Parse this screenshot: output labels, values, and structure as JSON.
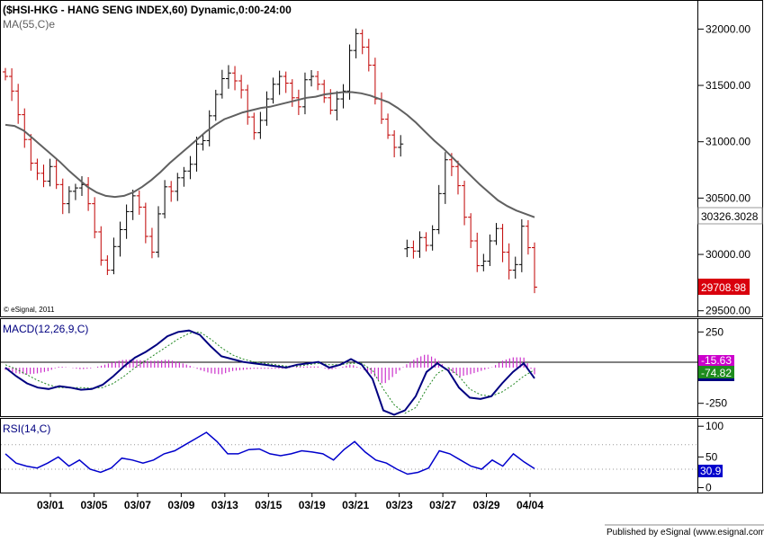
{
  "header": {
    "title": "($HSI-HKG - HANG SENG INDEX,60) Dynamic,0:00-24:00",
    "ma_label": "MA(55,C)e",
    "copyright": "© eSignal, 2011",
    "footer": "Published by eSignal (www.esignal.com)"
  },
  "colors": {
    "up": "#000000",
    "down": "#c00000",
    "ma": "#606060",
    "macd": "#000080",
    "signal": "#228822",
    "histogram": "#cc33cc",
    "rsi": "#0000cc"
  },
  "chart_data": [
    {
      "type": "ohlc",
      "title": "($HSI-HKG - HANG SENG INDEX,60) Dynamic,0:00-24:00",
      "ylim": [
        29450,
        32250
      ],
      "yticks": [
        29500,
        30000,
        30500,
        31000,
        31500,
        32000
      ],
      "ytick_labels": [
        "29500.00",
        "30000.00",
        "30500.00",
        "31000.00",
        "31500.00",
        "32000.00"
      ],
      "x_labels": [
        "03/01",
        "03/05",
        "03/07",
        "03/09",
        "03/13",
        "03/15",
        "03/19",
        "03/21",
        "03/23",
        "03/27",
        "03/29",
        "04/04"
      ],
      "close_series": [
        31580,
        31450,
        31240,
        31020,
        30810,
        30720,
        30650,
        30780,
        30620,
        30450,
        30560,
        30590,
        30620,
        30450,
        30200,
        29950,
        29860,
        30070,
        30220,
        30380,
        30520,
        30420,
        30160,
        30020,
        30360,
        30600,
        30560,
        30680,
        30740,
        30800,
        30980,
        31010,
        31230,
        31420,
        31560,
        31610,
        31540,
        31460,
        31220,
        31080,
        31190,
        31380,
        31510,
        31580,
        31520,
        31390,
        31310,
        31550,
        31580,
        31510,
        31390,
        31280,
        31380,
        31450,
        31810,
        31960,
        31840,
        31680,
        31380,
        31200,
        31060,
        30950,
        30980,
        30060,
        30030,
        30150,
        30080,
        30220,
        30540,
        30840,
        30780,
        30610,
        30330,
        30120,
        29900,
        29940,
        30120,
        30230,
        30020,
        29860,
        29910,
        30250,
        30060,
        29710
      ],
      "series": [
        {
          "name": "MA(55,C)e",
          "last_value": "30326.3028",
          "values": [
            31150,
            31140,
            31100,
            31030,
            30960,
            30890,
            30820,
            30740,
            30670,
            30600,
            30550,
            30520,
            30510,
            30520,
            30550,
            30600,
            30660,
            30730,
            30810,
            30880,
            30950,
            31020,
            31090,
            31150,
            31200,
            31230,
            31260,
            31280,
            31300,
            31310,
            31330,
            31350,
            31370,
            31390,
            31400,
            31420,
            31430,
            31440,
            31440,
            31430,
            31410,
            31380,
            31350,
            31300,
            31240,
            31170,
            31090,
            31010,
            30940,
            30860,
            30780,
            30700,
            30620,
            30550,
            30480,
            30430,
            30390,
            30360,
            30330
          ]
        }
      ],
      "last_price": "29708.98"
    },
    {
      "type": "line",
      "title": "MACD(12,26,9,C)",
      "ylim": [
        -340,
        340
      ],
      "yticks": [
        250,
        -250
      ],
      "ytick_labels": [
        "250",
        "-250"
      ],
      "series": [
        {
          "name": "MACD",
          "last_value": "-74.82",
          "values": [
            0,
            -60,
            -110,
            -140,
            -150,
            -130,
            -140,
            -155,
            -150,
            -120,
            -60,
            10,
            70,
            110,
            160,
            220,
            250,
            260,
            230,
            150,
            80,
            60,
            40,
            30,
            20,
            10,
            0,
            20,
            30,
            40,
            0,
            20,
            60,
            20,
            -80,
            -300,
            -330,
            -300,
            -200,
            -30,
            30,
            -20,
            -140,
            -210,
            -220,
            -200,
            -110,
            -30,
            30,
            -74.82
          ]
        },
        {
          "name": "Signal",
          "last_value": "-15.63",
          "values": [
            20,
            -10,
            -50,
            -90,
            -120,
            -140,
            -140,
            -140,
            -145,
            -140,
            -110,
            -60,
            0,
            50,
            100,
            150,
            200,
            240,
            250,
            200,
            140,
            90,
            60,
            40,
            30,
            20,
            10,
            10,
            20,
            30,
            20,
            20,
            30,
            30,
            -20,
            -150,
            -260,
            -320,
            -280,
            -150,
            -40,
            0,
            -60,
            -150,
            -190,
            -200,
            -170,
            -120,
            -60,
            -15.63
          ]
        }
      ]
    },
    {
      "type": "line",
      "title": "RSI(14,C)",
      "ylim": [
        -8,
        112
      ],
      "yticks": [
        100,
        50,
        0
      ],
      "ytick_labels": [
        "100",
        "50",
        "0"
      ],
      "levels": [
        70,
        30
      ],
      "series": [
        {
          "name": "RSI",
          "last_value": "30.9",
          "values": [
            55,
            40,
            35,
            32,
            40,
            50,
            35,
            45,
            30,
            25,
            32,
            48,
            45,
            40,
            45,
            55,
            60,
            70,
            80,
            90,
            75,
            55,
            55,
            62,
            63,
            55,
            52,
            55,
            60,
            58,
            55,
            45,
            62,
            75,
            58,
            45,
            40,
            30,
            22,
            25,
            32,
            60,
            55,
            45,
            35,
            30,
            45,
            35,
            55,
            42,
            30.9
          ]
        }
      ]
    }
  ]
}
